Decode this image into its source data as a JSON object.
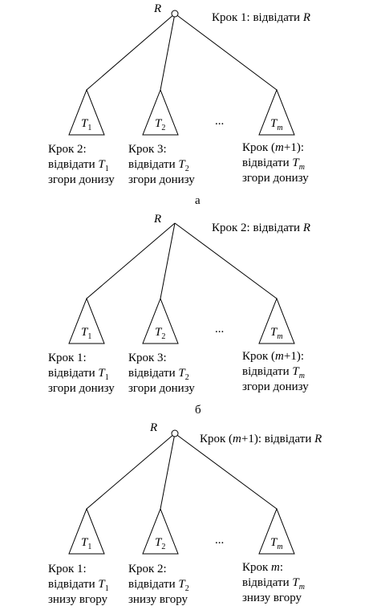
{
  "root_symbol": "R",
  "ellipsis": "...",
  "panels": [
    {
      "caption": "а",
      "root_step": [
        "Крок 1: відвідати ",
        "R"
      ],
      "subtrees": [
        {
          "name": "T",
          "sub": "1",
          "lines": [
            [
              "Крок 2:"
            ],
            [
              "відвідати ",
              "T",
              "1"
            ],
            [
              "згори донизу"
            ]
          ]
        },
        {
          "name": "T",
          "sub": "2",
          "lines": [
            [
              "Крок 3:"
            ],
            [
              "відвідати ",
              "T",
              "2"
            ],
            [
              "згори донизу"
            ]
          ]
        },
        {
          "name": "T",
          "sub": "m",
          "lines": [
            [
              "Крок (",
              "m",
              "+1):"
            ],
            [
              "відвідати ",
              "T",
              "m"
            ],
            [
              "згори донизу"
            ]
          ]
        }
      ]
    },
    {
      "caption": "б",
      "root_step": [
        "Крок 2: відвідати ",
        "R"
      ],
      "subtrees": [
        {
          "name": "T",
          "sub": "1",
          "lines": [
            [
              "Крок 1:"
            ],
            [
              "відвідати ",
              "T",
              "1"
            ],
            [
              "згори донизу"
            ]
          ]
        },
        {
          "name": "T",
          "sub": "2",
          "lines": [
            [
              "Крок 3:"
            ],
            [
              "відвідати ",
              "T",
              "2"
            ],
            [
              "згори донизу"
            ]
          ]
        },
        {
          "name": "T",
          "sub": "m",
          "lines": [
            [
              "Крок (",
              "m",
              "+1):"
            ],
            [
              "відвідати ",
              "T",
              "m"
            ],
            [
              "згори донизу"
            ]
          ]
        }
      ]
    },
    {
      "caption": "",
      "root_step": [
        "Крок (",
        "m",
        "+1): відвідати ",
        "R"
      ],
      "subtrees": [
        {
          "name": "T",
          "sub": "1",
          "lines": [
            [
              "Крок 1:"
            ],
            [
              "відвідати ",
              "T",
              "1"
            ],
            [
              "знизу вгору"
            ]
          ]
        },
        {
          "name": "T",
          "sub": "2",
          "lines": [
            [
              "Крок 2:"
            ],
            [
              "відвідати ",
              "T",
              "2"
            ],
            [
              "знизу вгору"
            ]
          ]
        },
        {
          "name": "T",
          "sub": "m",
          "lines": [
            [
              "Крок ",
              "m",
              ":"
            ],
            [
              "відвідати ",
              "T",
              "m"
            ],
            [
              "знизу вгору"
            ]
          ]
        }
      ]
    }
  ]
}
